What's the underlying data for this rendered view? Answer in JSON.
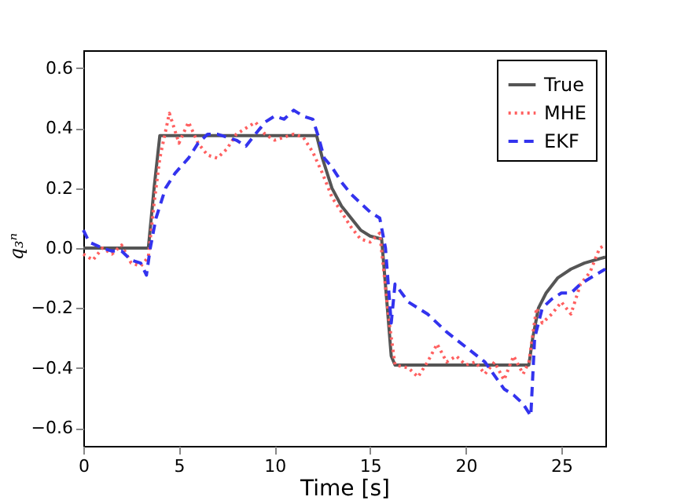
{
  "chart_data": {
    "type": "line",
    "xlabel": "Time [s]",
    "ylabel": "q₃ⁿ",
    "xlim": [
      0,
      27.3
    ],
    "ylim": [
      -0.66,
      0.66
    ],
    "xticks": [
      0,
      5,
      10,
      15,
      20,
      25
    ],
    "yticks": [
      {
        "value": -0.6,
        "label": "−0.6"
      },
      {
        "value": -0.4,
        "label": "−0.4"
      },
      {
        "value": -0.2,
        "label": "−0.2"
      },
      {
        "value": 0,
        "label": "0.0"
      },
      0.2,
      0.4,
      0.6
    ],
    "grid": false,
    "legend": "top right",
    "marker": "none",
    "series": [
      {
        "name": "True",
        "color": "#555555",
        "line_style": "solid",
        "x": [
          0,
          3.4,
          3.7,
          4.0,
          12.2,
          12.5,
          13,
          13.5,
          14,
          14.5,
          15,
          15.6,
          15.9,
          16.1,
          16.3,
          23.3,
          23.5,
          23.8,
          24.2,
          24.8,
          25.5,
          26.2,
          27.3
        ],
        "values": [
          0,
          0,
          0.2,
          0.375,
          0.375,
          0.3,
          0.2,
          0.14,
          0.1,
          0.06,
          0.04,
          0.03,
          -0.2,
          -0.36,
          -0.39,
          -0.39,
          -0.3,
          -0.2,
          -0.15,
          -0.1,
          -0.07,
          -0.05,
          -0.03
        ]
      },
      {
        "name": "MHE",
        "color": "#ff6060",
        "line_style": "dotted",
        "x": [
          0,
          0.5,
          1,
          1.5,
          2,
          2.5,
          3,
          3.4,
          3.7,
          4.0,
          4.5,
          5,
          5.5,
          6,
          6.5,
          7,
          7.5,
          8,
          8.5,
          9,
          9.5,
          10,
          10.5,
          11,
          11.5,
          12,
          12.5,
          13,
          13.5,
          14,
          14.5,
          15,
          15.5,
          16,
          16.3,
          17,
          17.5,
          18,
          18.5,
          19,
          19.5,
          20,
          20.5,
          21,
          21.5,
          22,
          22.5,
          23,
          23.3,
          23.7,
          24,
          24.5,
          25,
          25.5,
          26,
          26.5,
          27,
          27.3
        ],
        "values": [
          -0.02,
          -0.04,
          0,
          -0.02,
          0.01,
          -0.05,
          -0.06,
          -0.03,
          0.15,
          0.3,
          0.45,
          0.35,
          0.42,
          0.35,
          0.31,
          0.3,
          0.33,
          0.38,
          0.4,
          0.42,
          0.38,
          0.36,
          0.37,
          0.38,
          0.37,
          0.32,
          0.25,
          0.17,
          0.12,
          0.07,
          0.03,
          0.02,
          0.05,
          -0.25,
          -0.39,
          -0.4,
          -0.43,
          -0.38,
          -0.32,
          -0.38,
          -0.36,
          -0.39,
          -0.38,
          -0.42,
          -0.38,
          -0.44,
          -0.36,
          -0.42,
          -0.38,
          -0.2,
          -0.25,
          -0.22,
          -0.18,
          -0.22,
          -0.12,
          -0.08,
          0,
          0.01
        ]
      },
      {
        "name": "EKF",
        "color": "#3333ee",
        "line_style": "dashed",
        "x": [
          0,
          0.3,
          1,
          1.5,
          2,
          2.5,
          3,
          3.3,
          3.5,
          3.8,
          4.3,
          4.8,
          5.5,
          6,
          6.5,
          7,
          7.5,
          8,
          8.5,
          9,
          9.5,
          10,
          10.5,
          11,
          11.5,
          12,
          12.3,
          12.6,
          13,
          13.5,
          14,
          14.5,
          15,
          15.5,
          15.8,
          16.1,
          16.3,
          17,
          18,
          19,
          20,
          21,
          22,
          22.5,
          23,
          23.4,
          23.6,
          24,
          24.5,
          25,
          25.5,
          26,
          26.5,
          27.3
        ],
        "values": [
          0.06,
          0.02,
          0,
          -0.01,
          -0.01,
          -0.04,
          -0.05,
          -0.09,
          0,
          0.1,
          0.2,
          0.25,
          0.3,
          0.35,
          0.38,
          0.38,
          0.37,
          0.36,
          0.34,
          0.38,
          0.42,
          0.44,
          0.43,
          0.46,
          0.44,
          0.43,
          0.37,
          0.3,
          0.27,
          0.22,
          0.18,
          0.15,
          0.12,
          0.1,
          0,
          -0.25,
          -0.12,
          -0.18,
          -0.22,
          -0.28,
          -0.33,
          -0.38,
          -0.47,
          -0.49,
          -0.52,
          -0.56,
          -0.3,
          -0.2,
          -0.17,
          -0.15,
          -0.15,
          -0.12,
          -0.1,
          -0.07
        ]
      }
    ]
  }
}
